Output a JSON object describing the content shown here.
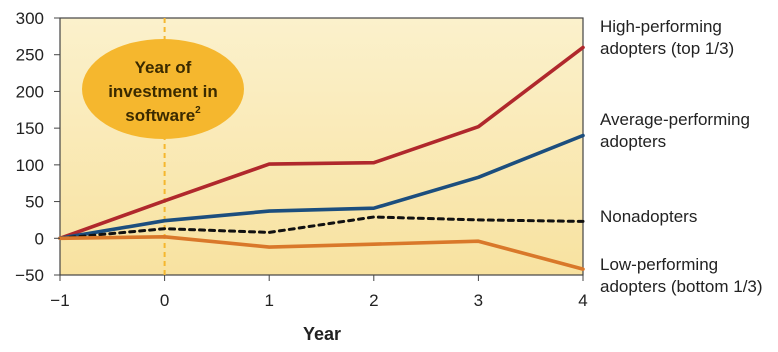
{
  "chart_data": {
    "type": "line",
    "x": [
      -1,
      0,
      1,
      2,
      3,
      4
    ],
    "xlabel": "Year",
    "ylabel": "",
    "xlim": [
      -1,
      4
    ],
    "ylim": [
      -50,
      300
    ],
    "x_ticks": [
      "−1",
      "0",
      "1",
      "2",
      "3",
      "4"
    ],
    "y_ticks": [
      "300",
      "250",
      "200",
      "150",
      "100",
      "50",
      "0",
      "−50"
    ],
    "grid": false,
    "legend_placement": "right",
    "series": [
      {
        "name": "High-performing adopters (top 1/3)",
        "label_lines": [
          "High-performing",
          "adopters (top 1/3)"
        ],
        "values": [
          0,
          51,
          101,
          103,
          152,
          260
        ],
        "color": "#b0282c",
        "dashed": false
      },
      {
        "name": "Average-performing adopters",
        "label_lines": [
          "Average-performing",
          "adopters"
        ],
        "values": [
          0,
          24,
          37,
          41,
          83,
          140
        ],
        "color": "#1c4e7e",
        "dashed": false
      },
      {
        "name": "Nonadopters",
        "label_lines": [
          "Nonadopters"
        ],
        "values": [
          0,
          13,
          8,
          29,
          25,
          23
        ],
        "color": "#111111",
        "dashed": true
      },
      {
        "name": "Low-performing adopters (bottom 1/3)",
        "label_lines": [
          "Low-performing",
          "adopters (bottom 1/3)"
        ],
        "values": [
          0,
          2,
          -12,
          -8,
          -4,
          -42
        ],
        "color": "#d9782a",
        "dashed": false
      }
    ],
    "annotation": {
      "lines": [
        "Year of",
        "investment in",
        "software"
      ],
      "superscript": "2",
      "marker_x": 0,
      "fill": "#f5b72e",
      "marker_color": "#f5b72e"
    },
    "colors": {
      "plot_background_top": "#fbf1cc",
      "plot_background_bottom": "#f8e2a0",
      "axis": "#444444"
    }
  }
}
